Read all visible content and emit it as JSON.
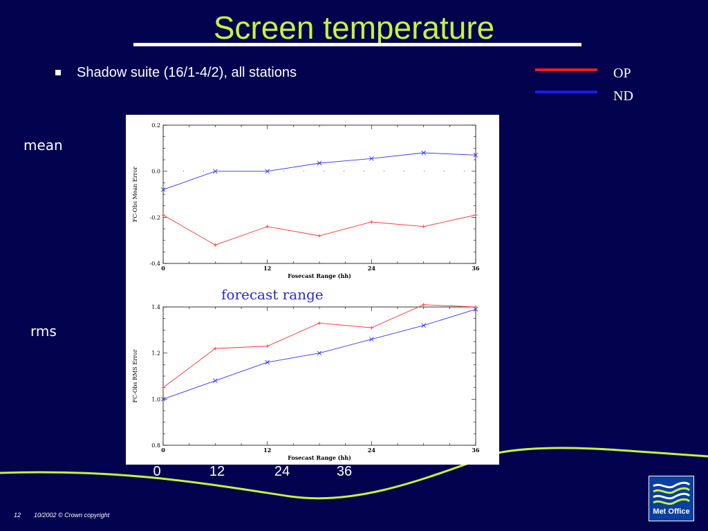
{
  "slide": {
    "title": "Screen temperature",
    "bullet": "Shadow suite (16/1-4/2), all stations",
    "mean_label": "mean",
    "rms_label": "rms",
    "forecast_range_label": "forecast range",
    "bottom_ticks": [
      "0",
      "12",
      "24",
      "36"
    ],
    "page_number": "12",
    "footer": "10/2002 © Crown copyright",
    "logo_text": "Met Office"
  },
  "legend": [
    {
      "label": "OP",
      "color": "#ff1a1a"
    },
    {
      "label": "ND",
      "color": "#1a1aff"
    }
  ],
  "chart_data": [
    {
      "type": "line",
      "ylabel": "FC-Obs Mean Error",
      "xlabel": "Fosecast Range (hh)",
      "xlim": [
        0,
        36
      ],
      "ylim": [
        -0.4,
        0.2
      ],
      "xticks": [
        0,
        12,
        24,
        36
      ],
      "yticks": [
        -0.4,
        -0.2,
        0.0,
        0.2
      ],
      "ytick_labels": [
        "-0.4",
        "-0.2",
        "0.0",
        "0.2"
      ],
      "series": [
        {
          "name": "OP",
          "color": "#ff3333",
          "x": [
            0,
            6,
            12,
            18,
            24,
            30,
            36
          ],
          "y": [
            -0.19,
            -0.32,
            -0.24,
            -0.28,
            -0.22,
            -0.24,
            -0.19
          ]
        },
        {
          "name": "ND",
          "color": "#3333ff",
          "x": [
            0,
            6,
            12,
            18,
            24,
            30,
            36
          ],
          "y": [
            -0.08,
            0.0,
            0.0,
            0.035,
            0.055,
            0.08,
            0.07
          ]
        }
      ]
    },
    {
      "type": "line",
      "ylabel": "FC-Obs RMS Error",
      "xlabel": "Fosecast Range (hh)",
      "xlim": [
        0,
        36
      ],
      "ylim": [
        0.8,
        1.4
      ],
      "xticks": [
        0,
        12,
        24,
        36
      ],
      "yticks": [
        0.8,
        1.0,
        1.2,
        1.4
      ],
      "ytick_labels": [
        "0.8",
        "1.0",
        "1.2",
        "1.4"
      ],
      "series": [
        {
          "name": "OP",
          "color": "#ff3333",
          "x": [
            0,
            6,
            12,
            18,
            24,
            30,
            36
          ],
          "y": [
            1.05,
            1.22,
            1.23,
            1.33,
            1.31,
            1.41,
            1.4
          ]
        },
        {
          "name": "ND",
          "color": "#3333ff",
          "x": [
            0,
            6,
            12,
            18,
            24,
            30,
            36
          ],
          "y": [
            1.0,
            1.08,
            1.16,
            1.2,
            1.26,
            1.32,
            1.39
          ]
        }
      ]
    }
  ]
}
